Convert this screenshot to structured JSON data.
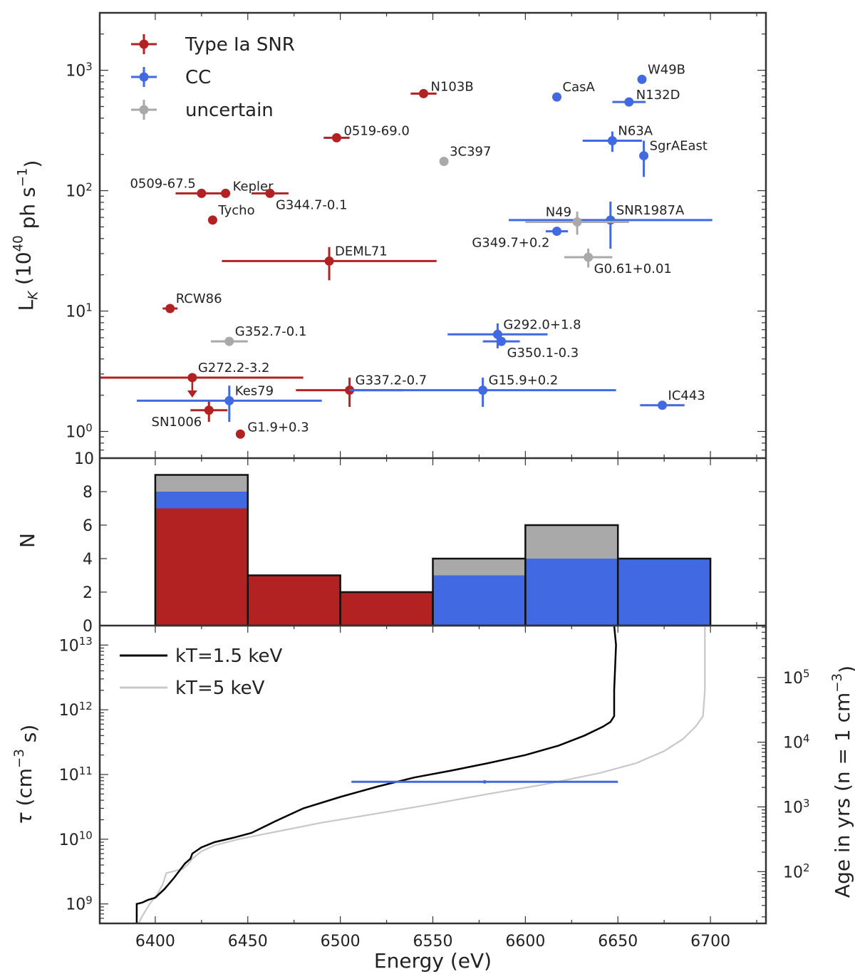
{
  "chart_data": [
    {
      "type": "scatter",
      "panel": "top",
      "ylabel": "L_K (10^40 ph s^-1)",
      "yscale": "log",
      "ylim": [
        0.6,
        3000
      ],
      "xlim": [
        6370,
        6730
      ],
      "ytick_labels": [
        "10^0",
        "10^1",
        "10^2",
        "10^3"
      ],
      "bottom_label": "10",
      "legend": {
        "placement": "top-left",
        "entries": [
          {
            "key": "ia",
            "label": "Type Ia SNR"
          },
          {
            "key": "cc",
            "label": "CC"
          },
          {
            "key": "unc",
            "label": "uncertain"
          }
        ]
      },
      "colors": {
        "ia": "#b22222",
        "cc": "#4169e1",
        "unc": "#a9a9a9"
      },
      "points": [
        {
          "name": "N103B",
          "type": "ia",
          "x": 6545,
          "y": 640,
          "xerr": [
            7,
            7
          ],
          "lab": "r"
        },
        {
          "name": "0519-69.0",
          "type": "ia",
          "x": 6498,
          "y": 275,
          "xerr": [
            7,
            7
          ],
          "lab": "r"
        },
        {
          "name": "0509-67.5",
          "type": "ia",
          "x": 6425,
          "y": 95,
          "xerr": [
            14,
            14
          ],
          "lab": "tl"
        },
        {
          "name": "Kepler",
          "type": "ia",
          "x": 6438,
          "y": 95,
          "lab": "r"
        },
        {
          "name": "G344.7-0.1",
          "type": "ia",
          "x": 6462,
          "y": 95,
          "xerr": [
            10,
            10
          ],
          "lab": "br"
        },
        {
          "name": "Tycho",
          "type": "ia",
          "x": 6431,
          "y": 57,
          "lab": "tr"
        },
        {
          "name": "DEML71",
          "type": "ia",
          "x": 6494,
          "y": 26,
          "xerr": [
            58,
            58
          ],
          "yerr": [
            8,
            8
          ],
          "lab": "tr"
        },
        {
          "name": "RCW86",
          "type": "ia",
          "x": 6408,
          "y": 10.5,
          "xerr": [
            4,
            4
          ],
          "lab": "tr"
        },
        {
          "name": "G272.2-3.2",
          "type": "ia",
          "x": 6420,
          "y": 2.8,
          "xerr": [
            50,
            60
          ],
          "upper_limit": true,
          "lab": "tr"
        },
        {
          "name": "G337.2-0.7",
          "type": "ia",
          "x": 6505,
          "y": 2.2,
          "xerr": [
            29,
            29
          ],
          "yerr": [
            0.6,
            0.6
          ],
          "lab": "tr"
        },
        {
          "name": "SN1006",
          "type": "ia",
          "x": 6429,
          "y": 1.5,
          "xerr": [
            10,
            10
          ],
          "yerr": [
            0.3,
            0.3
          ],
          "lab": "bl"
        },
        {
          "name": "G1.9+0.3",
          "type": "ia",
          "x": 6446,
          "y": 0.95,
          "lab": "r"
        },
        {
          "name": "W49B",
          "type": "cc",
          "x": 6663,
          "y": 840,
          "lab": "tr"
        },
        {
          "name": "CasA",
          "type": "cc",
          "x": 6617,
          "y": 600,
          "lab": "tr"
        },
        {
          "name": "N132D",
          "type": "cc",
          "x": 6656,
          "y": 545,
          "xerr": [
            9,
            9
          ],
          "lab": "r"
        },
        {
          "name": "N63A",
          "type": "cc",
          "x": 6647,
          "y": 260,
          "xerr": [
            16,
            16
          ],
          "yerr": [
            50,
            50
          ],
          "lab": "tr"
        },
        {
          "name": "SgrAEast",
          "type": "cc",
          "x": 6664,
          "y": 195,
          "yerr": [
            65,
            65
          ],
          "lab": "tr"
        },
        {
          "name": "SNR1987A",
          "type": "cc",
          "x": 6646,
          "y": 57,
          "xerr": [
            55,
            55
          ],
          "yerr": [
            24,
            24
          ],
          "lab": "tr"
        },
        {
          "name": "G349.7+0.2",
          "type": "cc",
          "x": 6617,
          "y": 46,
          "xerr": [
            6,
            6
          ],
          "lab": "bl"
        },
        {
          "name": "G292.0+1.8",
          "type": "cc",
          "x": 6585,
          "y": 6.4,
          "xerr": [
            27,
            27
          ],
          "yerr": [
            1.5,
            1.5
          ],
          "lab": "tr"
        },
        {
          "name": "G350.1-0.3",
          "type": "cc",
          "x": 6587,
          "y": 5.6,
          "xerr": [
            10,
            10
          ],
          "lab": "br"
        },
        {
          "name": "G15.9+0.2",
          "type": "cc",
          "x": 6577,
          "y": 2.2,
          "xerr": [
            72,
            72
          ],
          "yerr": [
            0.6,
            0.6
          ],
          "lab": "tr"
        },
        {
          "name": "Kes79",
          "type": "cc",
          "x": 6440,
          "y": 1.8,
          "xerr": [
            50,
            50
          ],
          "yerr": [
            0.6,
            0.6
          ],
          "lab": "tr"
        },
        {
          "name": "IC443",
          "type": "cc",
          "x": 6674,
          "y": 1.65,
          "xerr": [
            12,
            12
          ],
          "lab": "tr"
        },
        {
          "name": "3C397",
          "type": "unc",
          "x": 6556,
          "y": 175,
          "lab": "tr"
        },
        {
          "name": "N49",
          "type": "unc",
          "x": 6628,
          "y": 55,
          "xerr": [
            28,
            28
          ],
          "yerr": [
            12,
            12
          ],
          "lab": "tl"
        },
        {
          "name": "G0.61+0.01",
          "type": "unc",
          "x": 6634,
          "y": 28,
          "xerr": [
            13,
            13
          ],
          "yerr": [
            5,
            5
          ],
          "lab": "br"
        },
        {
          "name": "G352.7-0.1",
          "type": "unc",
          "x": 6440,
          "y": 5.6,
          "xerr": [
            10,
            10
          ],
          "lab": "tr"
        }
      ]
    },
    {
      "type": "bar",
      "panel": "middle",
      "stacked": true,
      "ylabel": "N",
      "ylim": [
        0,
        10
      ],
      "yticks": [
        0,
        2,
        4,
        6,
        8
      ],
      "bin_edges": [
        6400,
        6450,
        6500,
        6550,
        6600,
        6650,
        6700
      ],
      "series": [
        {
          "key": "ia",
          "values": [
            7,
            3,
            2,
            0,
            0,
            0
          ]
        },
        {
          "key": "cc",
          "values": [
            1,
            0,
            0,
            3,
            4,
            4
          ]
        },
        {
          "key": "unc",
          "values": [
            1,
            0,
            0,
            1,
            2,
            0
          ]
        }
      ]
    },
    {
      "type": "line",
      "panel": "bottom",
      "xlabel": "Energy (eV)",
      "ylabel": "τ (cm^-3 s)",
      "ylabel_right": "Age in yrs (n = 1 cm^-3)",
      "yscale": "log",
      "ylim": [
        500000000.0,
        20000000000000.0
      ],
      "xlim": [
        6370,
        6730
      ],
      "x_ticks": [
        6400,
        6450,
        6500,
        6550,
        6600,
        6650,
        6700
      ],
      "ytick_labels": [
        "10^9",
        "10^10",
        "10^11",
        "10^12",
        "10^13"
      ],
      "ytick_labels_right": [
        "10^2",
        "10^3",
        "10^4",
        "10^5"
      ],
      "legend": {
        "placement": "top-left",
        "entries": [
          {
            "key": "k15",
            "label": "kT=1.5 keV",
            "color": "#000000"
          },
          {
            "key": "k5",
            "label": "kT=5    keV",
            "color": "#c8c8c8"
          }
        ]
      },
      "series": [
        {
          "key": "k15",
          "x": [
            6390,
            6390,
            6393,
            6396,
            6400,
            6405,
            6410,
            6416,
            6419,
            6420,
            6425,
            6432,
            6442,
            6452,
            6465,
            6480,
            6500,
            6520,
            6540,
            6560,
            6580,
            6600,
            6618,
            6632,
            6642,
            6646,
            6648,
            6648,
            6649,
            6648
          ],
          "y": [
            500000000.0,
            1000000000.0,
            1050000000.0,
            1150000000.0,
            1250000000.0,
            1700000000.0,
            2500000000.0,
            4200000000.0,
            5000000000.0,
            6000000000.0,
            7500000000.0,
            9000000000.0,
            10500000000.0,
            12500000000.0,
            19000000000.0,
            30000000000.0,
            45000000000.0,
            65000000000.0,
            90000000000.0,
            115000000000.0,
            150000000000.0,
            200000000000.0,
            280000000000.0,
            400000000000.0,
            550000000000.0,
            650000000000.0,
            800000000000.0,
            2000000000000.0,
            10000000000000.0,
            20000000000000.0
          ]
        },
        {
          "key": "k5",
          "x": [
            6391,
            6393,
            6397,
            6401,
            6404,
            6406,
            6410,
            6415,
            6418,
            6420,
            6425,
            6432,
            6445,
            6465,
            6490,
            6520,
            6550,
            6580,
            6610,
            6640,
            6660,
            6675,
            6685,
            6692,
            6696,
            6697,
            6697,
            6697
          ],
          "y": [
            500000000.0,
            650000000.0,
            1000000000.0,
            1400000000.0,
            2000000000.0,
            3000000000.0,
            3200000000.0,
            3500000000.0,
            4200000000.0,
            5000000000.0,
            6500000000.0,
            8000000000.0,
            10000000000.0,
            13000000000.0,
            18000000000.0,
            25000000000.0,
            35000000000.0,
            50000000000.0,
            70000000000.0,
            105000000000.0,
            150000000000.0,
            230000000000.0,
            350000000000.0,
            550000000000.0,
            800000000000.0,
            2000000000000.0,
            10000000000000.0,
            20000000000000.0
          ]
        }
      ],
      "errorbar": {
        "x": 6578,
        "y": 77000000000.0,
        "xerr": [
          72,
          72
        ],
        "color": "#4169e1"
      }
    }
  ]
}
